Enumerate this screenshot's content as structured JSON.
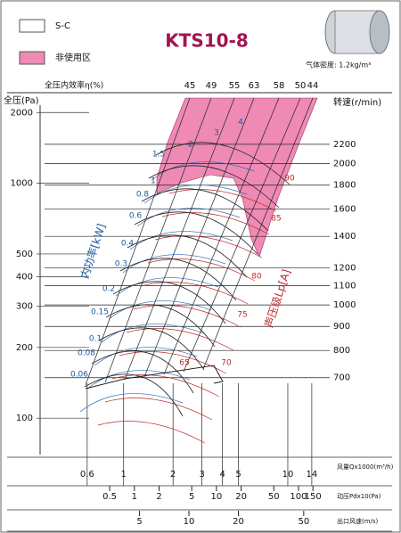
{
  "chart_data": {
    "type": "fan-performance",
    "title": "KTS10-8",
    "legend": [
      {
        "name": "S-C",
        "color": "#ffffff"
      },
      {
        "name": "非使用区",
        "color": "#ee8ab4"
      }
    ],
    "density_note": "气体密度: 1.2kg/m³",
    "ylabel": "全压(Pa)",
    "log_y": true,
    "ylim": [
      70,
      2150
    ],
    "yticks": [
      100,
      200,
      300,
      400,
      500,
      1000,
      2000
    ],
    "xlabel": "风量Qx1000(m³/h)",
    "log_x": true,
    "xlim": [
      0.31,
      18
    ],
    "xticks": [
      0.6,
      1,
      2,
      3,
      4,
      5,
      10,
      14
    ],
    "y2label": "转速(r/min)",
    "y2lim": [
      480,
      2665
    ],
    "y2ticks": [
      700,
      800,
      900,
      1000,
      1100,
      1200,
      1400,
      1600,
      1800,
      2000,
      2200
    ],
    "efficiency_label": "全压内效率η(%)",
    "efficiency_values": [
      45,
      49,
      55,
      63,
      58,
      50,
      44
    ],
    "power_label": "内功率[kW]",
    "power_values": [
      4,
      3,
      2,
      1.5,
      1,
      0.8,
      0.6,
      0.4,
      0.3,
      0.2,
      0.15,
      0.1,
      0.08,
      0.06
    ],
    "noise_label": "声压级Lp[A]",
    "noise_values": [
      90,
      85,
      80,
      75,
      70,
      65
    ],
    "bottom_scales": [
      {
        "label": "动压Pdx10(Pa)",
        "lim": [
          0.071,
          240
        ],
        "ticks": [
          0.5,
          1,
          2,
          5,
          10,
          20,
          50,
          100,
          150
        ]
      },
      {
        "label": "出口风速(m/s)",
        "lim": [
          1.24,
          72
        ],
        "ticks": [
          5,
          10,
          20,
          50
        ]
      }
    ]
  }
}
